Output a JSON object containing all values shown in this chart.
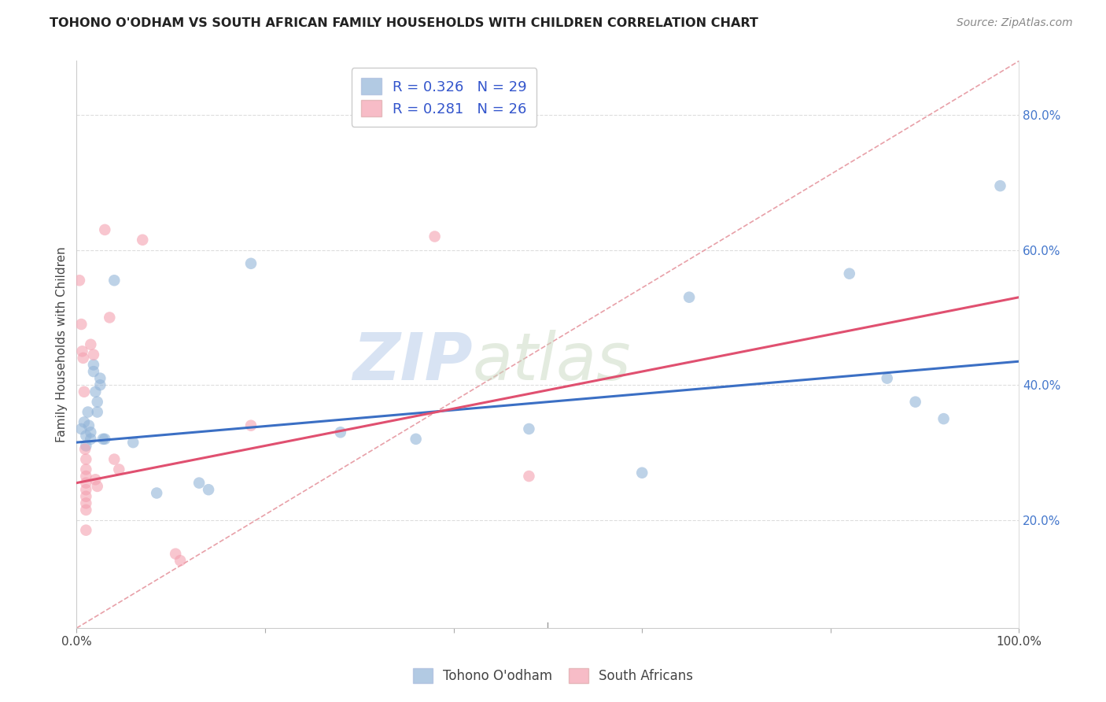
{
  "title": "TOHONO O'ODHAM VS SOUTH AFRICAN FAMILY HOUSEHOLDS WITH CHILDREN CORRELATION CHART",
  "source": "Source: ZipAtlas.com",
  "ylabel": "Family Households with Children",
  "y_ticks": [
    0.2,
    0.4,
    0.6,
    0.8
  ],
  "y_tick_labels": [
    "20.0%",
    "40.0%",
    "60.0%",
    "80.0%"
  ],
  "xlim": [
    0.0,
    1.0
  ],
  "ylim": [
    0.04,
    0.88
  ],
  "legend_label_blue": "Tohono O'odham",
  "legend_label_pink": "South Africans",
  "watermark_zip": "ZIP",
  "watermark_atlas": "atlas",
  "blue_color": "#92B4D8",
  "pink_color": "#F4A0B0",
  "blue_scatter": [
    [
      0.005,
      0.335
    ],
    [
      0.008,
      0.345
    ],
    [
      0.01,
      0.325
    ],
    [
      0.01,
      0.31
    ],
    [
      0.012,
      0.36
    ],
    [
      0.013,
      0.34
    ],
    [
      0.015,
      0.33
    ],
    [
      0.015,
      0.32
    ],
    [
      0.018,
      0.43
    ],
    [
      0.018,
      0.42
    ],
    [
      0.02,
      0.39
    ],
    [
      0.022,
      0.375
    ],
    [
      0.022,
      0.36
    ],
    [
      0.025,
      0.41
    ],
    [
      0.025,
      0.4
    ],
    [
      0.028,
      0.32
    ],
    [
      0.03,
      0.32
    ],
    [
      0.04,
      0.555
    ],
    [
      0.06,
      0.315
    ],
    [
      0.085,
      0.24
    ],
    [
      0.13,
      0.255
    ],
    [
      0.14,
      0.245
    ],
    [
      0.185,
      0.58
    ],
    [
      0.28,
      0.33
    ],
    [
      0.36,
      0.32
    ],
    [
      0.48,
      0.335
    ],
    [
      0.6,
      0.27
    ],
    [
      0.65,
      0.53
    ],
    [
      0.82,
      0.565
    ],
    [
      0.86,
      0.41
    ],
    [
      0.89,
      0.375
    ],
    [
      0.92,
      0.35
    ],
    [
      0.98,
      0.695
    ]
  ],
  "pink_scatter": [
    [
      0.003,
      0.555
    ],
    [
      0.005,
      0.49
    ],
    [
      0.006,
      0.45
    ],
    [
      0.007,
      0.44
    ],
    [
      0.008,
      0.39
    ],
    [
      0.009,
      0.305
    ],
    [
      0.01,
      0.29
    ],
    [
      0.01,
      0.275
    ],
    [
      0.01,
      0.265
    ],
    [
      0.01,
      0.255
    ],
    [
      0.01,
      0.245
    ],
    [
      0.01,
      0.235
    ],
    [
      0.01,
      0.225
    ],
    [
      0.01,
      0.215
    ],
    [
      0.01,
      0.185
    ],
    [
      0.015,
      0.46
    ],
    [
      0.018,
      0.445
    ],
    [
      0.02,
      0.26
    ],
    [
      0.022,
      0.25
    ],
    [
      0.03,
      0.63
    ],
    [
      0.035,
      0.5
    ],
    [
      0.04,
      0.29
    ],
    [
      0.045,
      0.275
    ],
    [
      0.07,
      0.615
    ],
    [
      0.105,
      0.15
    ],
    [
      0.11,
      0.14
    ],
    [
      0.185,
      0.34
    ],
    [
      0.38,
      0.62
    ],
    [
      0.48,
      0.265
    ]
  ],
  "blue_line_x": [
    0.0,
    1.0
  ],
  "blue_line_y": [
    0.315,
    0.435
  ],
  "pink_line_x": [
    0.0,
    1.0
  ],
  "pink_line_y": [
    0.255,
    0.53
  ],
  "diag_line_x": [
    0.0,
    1.0
  ],
  "diag_line_y": [
    0.04,
    0.88
  ]
}
